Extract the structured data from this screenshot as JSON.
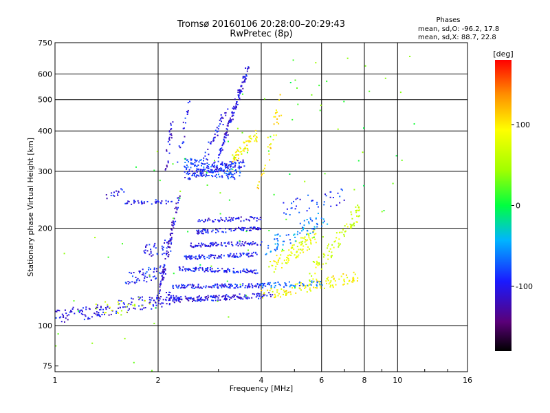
{
  "chart_data": {
    "type": "scatter",
    "title": "Tromsø 20160106 20:28:00–20:29:43",
    "subtitle": "RwPretec (8p)",
    "xlabel": "Frequency [MHz]",
    "ylabel": "Stationary phase Virtual Height [km]",
    "xscale": "log",
    "yscale": "log",
    "xlim": [
      1,
      16
    ],
    "ylim": [
      72,
      750
    ],
    "xticks": [
      1,
      2,
      4,
      6,
      8,
      10,
      16
    ],
    "xtick_labels": [
      "1",
      "2",
      "4",
      "6",
      "8",
      "10",
      "16"
    ],
    "yticks": [
      75,
      100,
      200,
      300,
      400,
      500,
      600,
      750
    ],
    "ytick_labels": [
      "75",
      "100",
      "200",
      "300",
      "400",
      "500",
      "600",
      "750"
    ],
    "grid": true,
    "stats": {
      "heading": "Phases",
      "line_o": "mean, sd,O:  -96.2, 17.8",
      "line_x": "mean, sd,X:  88.7, 22.8"
    },
    "colorbar": {
      "label": "[deg]",
      "range": [
        -180,
        180
      ],
      "ticks": [
        100,
        0,
        -100
      ],
      "tick_labels": [
        "100",
        "0",
        "-100"
      ],
      "colormap": "rainbow"
    },
    "traces": [
      {
        "x0": 1.0,
        "x1": 2.3,
        "y0": 106,
        "y1": 122,
        "phase": -100,
        "spread": 0.05,
        "n": 160
      },
      {
        "x0": 1.3,
        "x1": 1.9,
        "y0": 112,
        "y1": 118,
        "phase": 70,
        "spread": 0.05,
        "n": 24
      },
      {
        "x0": 2.1,
        "x1": 4.3,
        "y0": 120,
        "y1": 124,
        "phase": -105,
        "spread": 0.02,
        "n": 170
      },
      {
        "x0": 4.0,
        "x1": 7.7,
        "y0": 124,
        "y1": 142,
        "phase": 95,
        "spread": 0.04,
        "n": 110
      },
      {
        "x0": 2.2,
        "x1": 4.2,
        "y0": 132,
        "y1": 133,
        "phase": -95,
        "spread": 0.015,
        "n": 130
      },
      {
        "x0": 4.0,
        "x1": 6.0,
        "y0": 133,
        "y1": 135,
        "phase": -70,
        "spread": 0.02,
        "n": 50
      },
      {
        "x0": 2.3,
        "x1": 3.9,
        "y0": 150,
        "y1": 147,
        "phase": -95,
        "spread": 0.015,
        "n": 110
      },
      {
        "x0": 2.4,
        "x1": 3.9,
        "y0": 162,
        "y1": 166,
        "phase": -95,
        "spread": 0.015,
        "n": 100
      },
      {
        "x0": 2.5,
        "x1": 4.0,
        "y0": 177,
        "y1": 180,
        "phase": -100,
        "spread": 0.015,
        "n": 90
      },
      {
        "x0": 2.6,
        "x1": 4.0,
        "y0": 195,
        "y1": 200,
        "phase": -100,
        "spread": 0.015,
        "n": 80
      },
      {
        "x0": 2.6,
        "x1": 4.0,
        "y0": 212,
        "y1": 214,
        "phase": -100,
        "spread": 0.015,
        "n": 60
      },
      {
        "x0": 1.6,
        "x1": 2.1,
        "y0": 138,
        "y1": 148,
        "phase": -90,
        "spread": 0.05,
        "n": 60
      },
      {
        "x0": 1.8,
        "x1": 2.2,
        "y0": 168,
        "y1": 178,
        "phase": -95,
        "spread": 0.05,
        "n": 40
      },
      {
        "x0": 1.6,
        "x1": 2.2,
        "y0": 240,
        "y1": 242,
        "phase": -100,
        "spread": 0.015,
        "n": 40
      },
      {
        "x0": 1.4,
        "x1": 1.6,
        "y0": 250,
        "y1": 262,
        "phase": -100,
        "spread": 0.02,
        "n": 15
      },
      {
        "x0": 2.0,
        "x1": 2.3,
        "y0": 120,
        "y1": 250,
        "phase": -110,
        "spread": 0.02,
        "n": 90
      },
      {
        "x0": 2.1,
        "x1": 2.2,
        "y0": 300,
        "y1": 420,
        "phase": -110,
        "spread": 0.03,
        "n": 25
      },
      {
        "x0": 2.4,
        "x1": 3.5,
        "y0": 310,
        "y1": 300,
        "phase": -80,
        "spread": 0.06,
        "n": 160
      },
      {
        "x0": 2.4,
        "x1": 3.6,
        "y0": 290,
        "y1": 320,
        "phase": -95,
        "spread": 0.03,
        "n": 90
      },
      {
        "x0": 3.0,
        "x1": 3.65,
        "y0": 330,
        "y1": 620,
        "phase": -105,
        "spread": 0.03,
        "n": 120
      },
      {
        "x0": 3.3,
        "x1": 3.9,
        "y0": 330,
        "y1": 390,
        "phase": 95,
        "spread": 0.04,
        "n": 60
      },
      {
        "x0": 2.7,
        "x1": 3.2,
        "y0": 320,
        "y1": 480,
        "phase": -100,
        "spread": 0.04,
        "n": 40
      },
      {
        "x0": 2.3,
        "x1": 2.5,
        "y0": 330,
        "y1": 520,
        "phase": -100,
        "spread": 0.04,
        "n": 20
      },
      {
        "x0": 4.2,
        "x1": 5.8,
        "y0": 150,
        "y1": 190,
        "phase": 80,
        "spread": 0.06,
        "n": 100
      },
      {
        "x0": 5.5,
        "x1": 7.8,
        "y0": 140,
        "y1": 230,
        "phase": 70,
        "spread": 0.07,
        "n": 90
      },
      {
        "x0": 4.1,
        "x1": 6.2,
        "y0": 175,
        "y1": 215,
        "phase": -60,
        "spread": 0.06,
        "n": 70
      },
      {
        "x0": 4.5,
        "x1": 7.0,
        "y0": 230,
        "y1": 250,
        "phase": -90,
        "spread": 0.06,
        "n": 40
      },
      {
        "x0": 3.9,
        "x1": 4.6,
        "y0": 260,
        "y1": 500,
        "phase": 100,
        "spread": 0.1,
        "n": 35
      },
      {
        "x0": 1.0,
        "x1": 11.5,
        "y0": 80,
        "y1": 640,
        "phase": 20,
        "spread": 0.9,
        "n": 120
      }
    ]
  }
}
